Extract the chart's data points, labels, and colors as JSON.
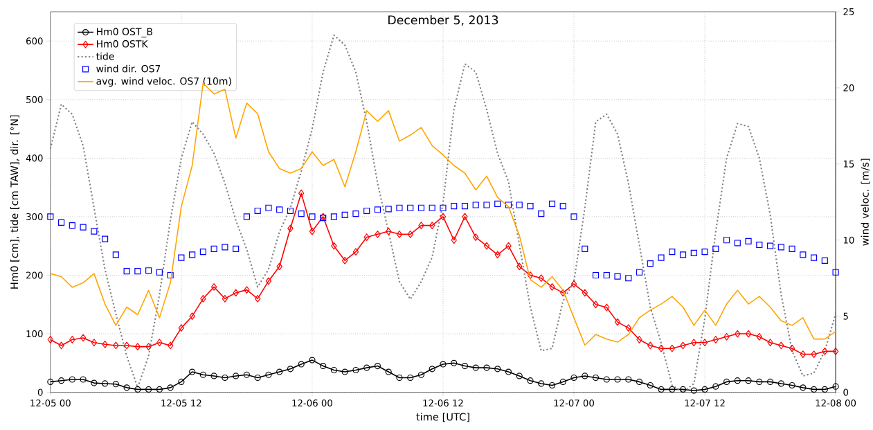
{
  "chart_data": {
    "type": "line",
    "title": "December 5, 2013",
    "xlabel": "time [UTC]",
    "ylabel": "Hm0 [cm], tide [cm TAW], dir. [°N]",
    "y2label": "wind veloc. [m/s]",
    "x": [
      "2013-12-05T00:00",
      "2013-12-05T01:00",
      "2013-12-05T02:00",
      "2013-12-05T03:00",
      "2013-12-05T04:00",
      "2013-12-05T05:00",
      "2013-12-05T06:00",
      "2013-12-05T07:00",
      "2013-12-05T08:00",
      "2013-12-05T09:00",
      "2013-12-05T10:00",
      "2013-12-05T11:00",
      "2013-12-05T12:00",
      "2013-12-05T13:00",
      "2013-12-05T14:00",
      "2013-12-05T15:00",
      "2013-12-05T16:00",
      "2013-12-05T17:00",
      "2013-12-05T18:00",
      "2013-12-05T19:00",
      "2013-12-05T20:00",
      "2013-12-05T21:00",
      "2013-12-05T22:00",
      "2013-12-05T23:00",
      "2013-12-06T00:00",
      "2013-12-06T01:00",
      "2013-12-06T02:00",
      "2013-12-06T03:00",
      "2013-12-06T04:00",
      "2013-12-06T05:00",
      "2013-12-06T06:00",
      "2013-12-06T07:00",
      "2013-12-06T08:00",
      "2013-12-06T09:00",
      "2013-12-06T10:00",
      "2013-12-06T11:00",
      "2013-12-06T12:00",
      "2013-12-06T13:00",
      "2013-12-06T14:00",
      "2013-12-06T15:00",
      "2013-12-06T16:00",
      "2013-12-06T17:00",
      "2013-12-06T18:00",
      "2013-12-06T19:00",
      "2013-12-06T20:00",
      "2013-12-06T21:00",
      "2013-12-06T22:00",
      "2013-12-06T23:00",
      "2013-12-07T00:00",
      "2013-12-07T01:00",
      "2013-12-07T02:00",
      "2013-12-07T03:00",
      "2013-12-07T04:00",
      "2013-12-07T05:00",
      "2013-12-07T06:00",
      "2013-12-07T07:00",
      "2013-12-07T08:00",
      "2013-12-07T09:00",
      "2013-12-07T10:00",
      "2013-12-07T11:00",
      "2013-12-07T12:00",
      "2013-12-07T13:00",
      "2013-12-07T14:00",
      "2013-12-07T15:00",
      "2013-12-07T16:00",
      "2013-12-07T17:00",
      "2013-12-07T18:00",
      "2013-12-07T19:00",
      "2013-12-07T20:00",
      "2013-12-07T21:00",
      "2013-12-07T22:00",
      "2013-12-07T23:00",
      "2013-12-08T00:00"
    ],
    "series": [
      {
        "name": "Hm0 OST_B",
        "color": "#000000",
        "marker": "circle",
        "line_style": "solid",
        "values": [
          18,
          20,
          22,
          22,
          16,
          15,
          14,
          8,
          5,
          5,
          5,
          8,
          18,
          35,
          30,
          28,
          25,
          28,
          30,
          25,
          30,
          35,
          40,
          48,
          55,
          45,
          38,
          35,
          38,
          42,
          45,
          35,
          25,
          25,
          30,
          40,
          48,
          50,
          45,
          42,
          42,
          40,
          35,
          28,
          20,
          15,
          12,
          18,
          25,
          28,
          25,
          22,
          22,
          22,
          18,
          12,
          5,
          5,
          5,
          3,
          5,
          10,
          18,
          20,
          20,
          18,
          18,
          15,
          12,
          8,
          5,
          5,
          10
        ]
      },
      {
        "name": "Hm0 OSTK",
        "color": "#ff0000",
        "marker": "diamond",
        "line_style": "solid",
        "values": [
          90,
          80,
          90,
          93,
          85,
          82,
          80,
          80,
          78,
          78,
          85,
          80,
          110,
          130,
          160,
          180,
          160,
          170,
          175,
          160,
          190,
          215,
          280,
          340,
          275,
          300,
          250,
          225,
          240,
          265,
          270,
          275,
          270,
          270,
          285,
          285,
          300,
          260,
          300,
          265,
          250,
          235,
          250,
          215,
          200,
          195,
          180,
          170,
          185,
          170,
          150,
          145,
          120,
          110,
          90,
          80,
          75,
          75,
          80,
          85,
          85,
          90,
          95,
          100,
          100,
          95,
          85,
          80,
          75,
          65,
          65,
          70,
          70
        ]
      },
      {
        "name": "tide",
        "color": "#808080",
        "marker": "none",
        "line_style": "dotted",
        "values": [
          416,
          492,
          475,
          421,
          315,
          210,
          134,
          62,
          8,
          62,
          167,
          294,
          400,
          462,
          441,
          408,
          357,
          294,
          244,
          180,
          210,
          274,
          315,
          378,
          450,
          547,
          610,
          593,
          547,
          462,
          357,
          274,
          189,
          159,
          189,
          231,
          323,
          483,
          561,
          547,
          483,
          408,
          360,
          252,
          146,
          71,
          75,
          156,
          189,
          315,
          462,
          475,
          441,
          357,
          252,
          146,
          84,
          12,
          0,
          15,
          126,
          274,
          400,
          459,
          454,
          400,
          303,
          167,
          71,
          28,
          33,
          71,
          134
        ]
      },
      {
        "name": "wind dir. OS7",
        "type": "scatter",
        "color": "#0000ff",
        "marker": "square",
        "values": [
          300,
          290,
          285,
          282,
          275,
          262,
          235,
          207,
          207,
          208,
          205,
          200,
          230,
          235,
          240,
          245,
          248,
          245,
          300,
          310,
          315,
          312,
          310,
          305,
          300,
          298,
          300,
          303,
          305,
          310,
          312,
          313,
          315,
          315,
          315,
          315,
          315,
          318,
          318,
          320,
          320,
          322,
          320,
          320,
          318,
          305,
          322,
          318,
          300,
          245,
          200,
          200,
          198,
          195,
          205,
          220,
          230,
          240,
          235,
          238,
          240,
          245,
          260,
          255,
          258,
          252,
          250,
          248,
          245,
          235,
          230,
          225,
          205
        ]
      },
      {
        "name": "avg. wind veloc. OS7 (10m)",
        "color": "#ffa500",
        "marker": "none",
        "line_style": "solid",
        "axis": "y2",
        "values": [
          7.8,
          7.6,
          6.9,
          7.2,
          7.8,
          5.8,
          4.4,
          5.6,
          5.1,
          6.7,
          4.9,
          7.2,
          12.2,
          14.9,
          20.3,
          19.6,
          19.9,
          16.7,
          19.0,
          18.3,
          15.8,
          14.7,
          14.4,
          14.7,
          15.8,
          14.9,
          15.3,
          13.5,
          15.8,
          18.5,
          17.8,
          18.5,
          16.5,
          16.9,
          17.4,
          16.2,
          15.6,
          14.9,
          14.4,
          13.3,
          14.2,
          12.8,
          12.2,
          10.3,
          7.4,
          6.9,
          7.6,
          6.7,
          4.9,
          3.1,
          3.8,
          3.5,
          3.3,
          3.8,
          4.9,
          5.4,
          5.8,
          6.3,
          5.6,
          4.4,
          5.4,
          4.4,
          5.8,
          6.7,
          5.8,
          6.3,
          5.6,
          4.7,
          4.4,
          4.9,
          3.5,
          3.5,
          4.0
        ]
      }
    ],
    "xlim": [
      "2013-12-05T00:00",
      "2013-12-08T00:00"
    ],
    "xticks": [
      {
        "value": "2013-12-05T00:00",
        "label": "12-05 00"
      },
      {
        "value": "2013-12-05T12:00",
        "label": "12-05 12"
      },
      {
        "value": "2013-12-06T00:00",
        "label": "12-06 00"
      },
      {
        "value": "2013-12-06T12:00",
        "label": "12-06 12"
      },
      {
        "value": "2013-12-07T00:00",
        "label": "12-07 00"
      },
      {
        "value": "2013-12-07T12:00",
        "label": "12-07 12"
      },
      {
        "value": "2013-12-08T00:00",
        "label": "12-08 00"
      }
    ],
    "ylim": [
      0,
      650
    ],
    "yticks": [
      0,
      100,
      200,
      300,
      400,
      500,
      600
    ],
    "y2lim": [
      0,
      25
    ],
    "y2ticks": [
      0,
      5,
      10,
      15,
      20,
      25
    ],
    "grid": true,
    "legend": "top left"
  }
}
